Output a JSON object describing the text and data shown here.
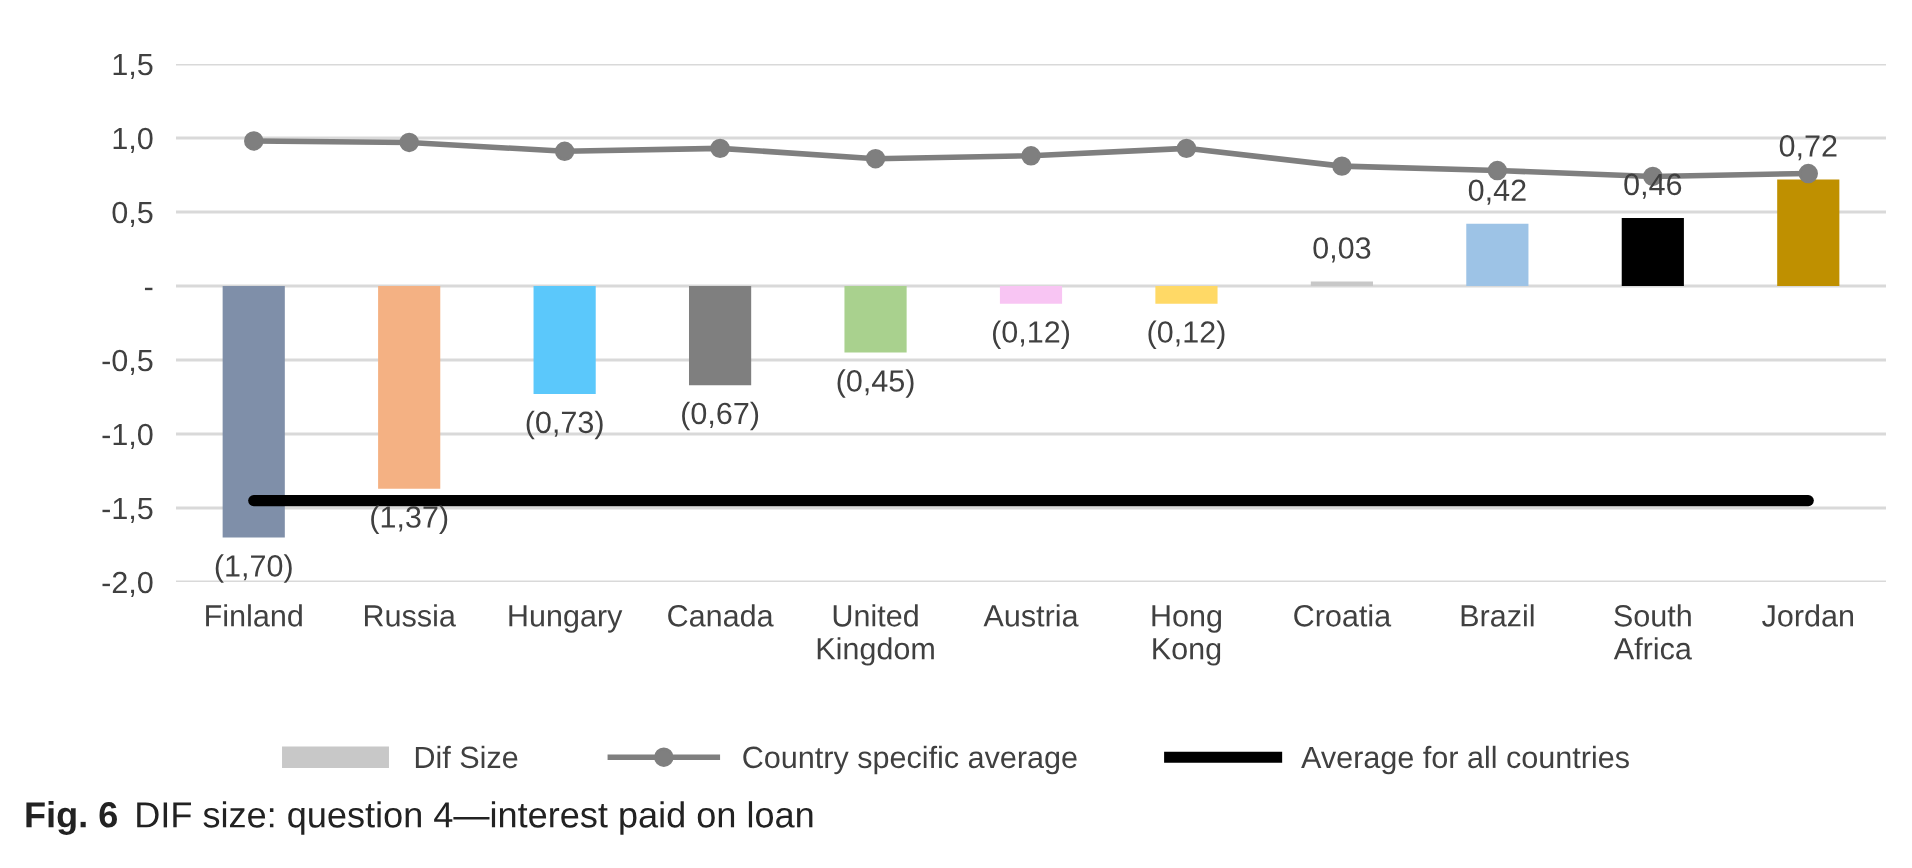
{
  "chart_data": {
    "type": "bar",
    "categories": [
      "Finland",
      "Russia",
      "Hungary",
      "Canada",
      "United Kingdom",
      "Austria",
      "Hong Kong",
      "Croatia",
      "Brazil",
      "South Africa",
      "Jordan"
    ],
    "series": [
      {
        "name": "Dif Size",
        "color": "#c8c8c8",
        "colors": [
          "#7f8fa9",
          "#f4b183",
          "#5bc8fb",
          "#7f7f7f",
          "#a9d18e",
          "#f8c5f3",
          "#ffd966",
          "#c8c8c8",
          "#9dc3e6",
          "#000000",
          "#bf9000"
        ],
        "values": [
          -1.7,
          -1.37,
          -0.73,
          -0.67,
          -0.45,
          -0.12,
          -0.12,
          0.03,
          0.42,
          0.46,
          0.72
        ],
        "value_labels": [
          "(1,70)",
          "(1,37)",
          "(0,73)",
          "(0,67)",
          "(0,45)",
          "(0,12)",
          "(0,12)",
          "0,03",
          "0,42",
          "0,46",
          "0,72"
        ]
      },
      {
        "name": "Country specific average",
        "type": "line",
        "color": "#7f7f7f",
        "marker": "circle",
        "values": [
          0.98,
          0.97,
          0.91,
          0.93,
          0.86,
          0.88,
          0.93,
          0.81,
          0.78,
          0.74,
          0.76
        ]
      },
      {
        "name": "Average for all countries",
        "type": "line",
        "color": "#000000",
        "marker": "none",
        "values": [
          -1.45,
          -1.45,
          -1.45,
          -1.45,
          -1.45,
          -1.45,
          -1.45,
          -1.45,
          -1.45,
          -1.45,
          -1.45
        ]
      }
    ],
    "ylim": [
      -2.0,
      1.5
    ],
    "yticks": [
      {
        "value": -2.0,
        "label": "-2,0"
      },
      {
        "value": -1.5,
        "label": "-1,5"
      },
      {
        "value": -1.0,
        "label": "-1,0"
      },
      {
        "value": -0.5,
        "label": "-0,5"
      },
      {
        "value": 0,
        "label": "-"
      },
      {
        "value": 0.5,
        "label": "0,5"
      },
      {
        "value": 1.0,
        "label": "1,0"
      },
      {
        "value": 1.5,
        "label": "1,5"
      }
    ],
    "grid": "y",
    "legend": "bottom",
    "annotations": [
      "Fig. 6",
      "DIF size: question 4—interest paid on loan"
    ]
  }
}
